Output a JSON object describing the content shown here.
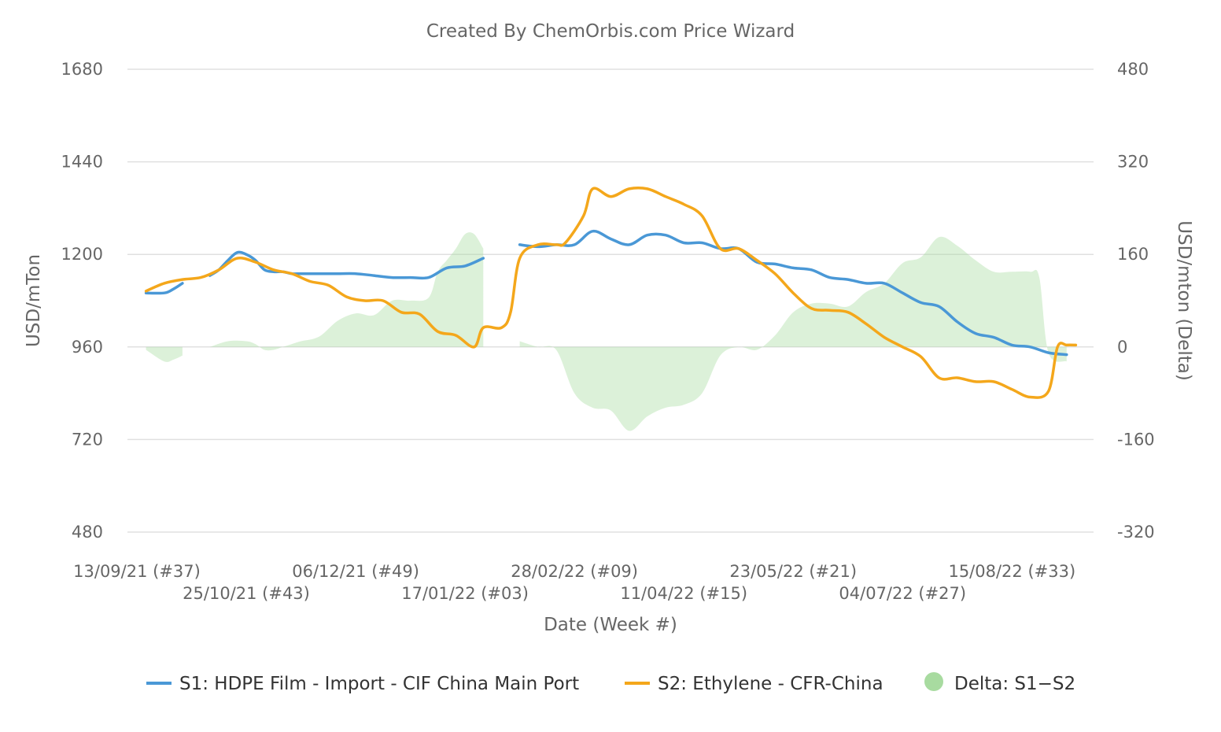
{
  "chart_data": {
    "type": "line",
    "title": "Created By ChemOrbis.com Price Wizard",
    "xlabel": "Date (Week #)",
    "ylabel_left": "USD/mTon",
    "ylabel_right": "USD/mton (Delta)",
    "ylim_left": [
      480,
      1680
    ],
    "ylim_right": [
      -320,
      480
    ],
    "yticks_left": [
      480,
      720,
      960,
      1200,
      1440,
      1680
    ],
    "yticks_right": [
      -320,
      -160,
      0,
      160,
      320,
      480
    ],
    "grid": true,
    "legend_position": "bottom",
    "x_labels": [
      {
        "label": "13/09/21 (#37)",
        "week": 0
      },
      {
        "label": "25/10/21 (#43)",
        "week": 6
      },
      {
        "label": "06/12/21 (#49)",
        "week": 12
      },
      {
        "label": "17/01/22 (#03)",
        "week": 18
      },
      {
        "label": "28/02/22 (#09)",
        "week": 24
      },
      {
        "label": "11/04/22 (#15)",
        "week": 30
      },
      {
        "label": "23/05/22 (#21)",
        "week": 36
      },
      {
        "label": "04/07/22 (#27)",
        "week": 42
      },
      {
        "label": "15/08/22 (#33)",
        "week": 48
      }
    ],
    "x_range": [
      0,
      52
    ],
    "series": [
      {
        "name": "S1: HDPE Film - Import - CIF China Main Port",
        "color": "#4a98d6",
        "axis": "left",
        "points": [
          [
            0.5,
            1100
          ],
          [
            1.5,
            1100
          ],
          [
            2,
            1110
          ],
          [
            2.5,
            1125
          ],
          [
            4,
            1145
          ],
          [
            4.5,
            1160
          ],
          [
            5,
            1185
          ],
          [
            5.5,
            1205
          ],
          [
            6,
            1200
          ],
          [
            6.5,
            1185
          ],
          [
            7,
            1160
          ],
          [
            7.5,
            1155
          ],
          [
            8,
            1155
          ],
          [
            8.5,
            1150
          ],
          [
            9,
            1150
          ],
          [
            10,
            1150
          ],
          [
            11,
            1150
          ],
          [
            12,
            1150
          ],
          [
            13,
            1145
          ],
          [
            14,
            1140
          ],
          [
            15,
            1140
          ],
          [
            16,
            1140
          ],
          [
            17,
            1165
          ],
          [
            18,
            1170
          ],
          [
            19,
            1190
          ],
          [
            21,
            1225
          ],
          [
            22,
            1220
          ],
          [
            23,
            1225
          ],
          [
            24,
            1225
          ],
          [
            25,
            1260
          ],
          [
            26,
            1240
          ],
          [
            27,
            1225
          ],
          [
            28,
            1250
          ],
          [
            29,
            1250
          ],
          [
            30,
            1230
          ],
          [
            31,
            1230
          ],
          [
            32,
            1215
          ],
          [
            33,
            1215
          ],
          [
            34,
            1180
          ],
          [
            35,
            1175
          ],
          [
            36,
            1165
          ],
          [
            37,
            1160
          ],
          [
            38,
            1140
          ],
          [
            39,
            1135
          ],
          [
            40,
            1125
          ],
          [
            41,
            1125
          ],
          [
            42,
            1100
          ],
          [
            43,
            1075
          ],
          [
            44,
            1065
          ],
          [
            45,
            1025
          ],
          [
            46,
            995
          ],
          [
            47,
            985
          ],
          [
            48,
            965
          ],
          [
            49,
            960
          ],
          [
            50,
            945
          ],
          [
            51,
            940
          ]
        ]
      },
      {
        "name": "S2: Ethylene - CFR-China",
        "color": "#f4a71b",
        "axis": "left",
        "points": [
          [
            0.5,
            1105
          ],
          [
            1.5,
            1125
          ],
          [
            2.5,
            1135
          ],
          [
            3.5,
            1140
          ],
          [
            4.5,
            1160
          ],
          [
            5.5,
            1190
          ],
          [
            6.5,
            1180
          ],
          [
            7.5,
            1160
          ],
          [
            8.5,
            1150
          ],
          [
            9.5,
            1130
          ],
          [
            10.5,
            1120
          ],
          [
            11.5,
            1090
          ],
          [
            12.5,
            1080
          ],
          [
            13.5,
            1080
          ],
          [
            14.5,
            1050
          ],
          [
            15.5,
            1045
          ],
          [
            16.5,
            1000
          ],
          [
            17.5,
            990
          ],
          [
            18.5,
            960
          ],
          [
            19,
            1010
          ],
          [
            20,
            1010
          ],
          [
            20.5,
            1050
          ],
          [
            21,
            1190
          ],
          [
            22,
            1225
          ],
          [
            23,
            1225
          ],
          [
            23.5,
            1230
          ],
          [
            24.5,
            1300
          ],
          [
            25,
            1370
          ],
          [
            26,
            1350
          ],
          [
            27,
            1370
          ],
          [
            28,
            1370
          ],
          [
            29,
            1350
          ],
          [
            30,
            1330
          ],
          [
            31,
            1300
          ],
          [
            32,
            1215
          ],
          [
            33,
            1215
          ],
          [
            34,
            1185
          ],
          [
            35,
            1150
          ],
          [
            36,
            1100
          ],
          [
            37,
            1060
          ],
          [
            38,
            1055
          ],
          [
            39,
            1050
          ],
          [
            40,
            1020
          ],
          [
            41,
            985
          ],
          [
            42,
            960
          ],
          [
            43,
            935
          ],
          [
            44,
            880
          ],
          [
            45,
            880
          ],
          [
            46,
            870
          ],
          [
            47,
            870
          ],
          [
            48,
            850
          ],
          [
            49,
            830
          ],
          [
            50,
            845
          ],
          [
            50.5,
            960
          ],
          [
            51,
            965
          ],
          [
            51.5,
            965
          ]
        ]
      },
      {
        "name": "Delta: S1−S2",
        "color": "#a8dba0",
        "axis": "right",
        "type": "area",
        "segments": [
          [
            [
              0.5,
              -5
            ],
            [
              1.5,
              -25
            ],
            [
              2,
              -22
            ],
            [
              2.5,
              -15
            ]
          ],
          [
            [
              4,
              0
            ],
            [
              5,
              10
            ],
            [
              6,
              10
            ],
            [
              6.5,
              5
            ],
            [
              7,
              -5
            ],
            [
              7.5,
              -5
            ],
            [
              8,
              0
            ],
            [
              8.5,
              5
            ],
            [
              9,
              10
            ],
            [
              10,
              18
            ],
            [
              11,
              45
            ],
            [
              12,
              58
            ],
            [
              13,
              55
            ],
            [
              14,
              80
            ],
            [
              15,
              80
            ],
            [
              16,
              85
            ],
            [
              16.5,
              130
            ],
            [
              17,
              150
            ],
            [
              17.5,
              170
            ],
            [
              18,
              195
            ],
            [
              18.5,
              195
            ],
            [
              19,
              170
            ]
          ],
          [
            [
              21,
              10
            ],
            [
              22,
              0
            ],
            [
              23,
              -5
            ],
            [
              24,
              -80
            ],
            [
              25,
              -105
            ],
            [
              26,
              -110
            ],
            [
              27,
              -145
            ],
            [
              28,
              -120
            ],
            [
              29,
              -105
            ],
            [
              30,
              -100
            ],
            [
              31,
              -80
            ],
            [
              32,
              -15
            ],
            [
              33,
              0
            ],
            [
              34,
              -5
            ],
            [
              35,
              20
            ],
            [
              36,
              60
            ],
            [
              37,
              75
            ],
            [
              38,
              75
            ],
            [
              39,
              70
            ],
            [
              40,
              95
            ],
            [
              41,
              110
            ],
            [
              42,
              145
            ],
            [
              43,
              155
            ],
            [
              44,
              190
            ],
            [
              45,
              175
            ],
            [
              46,
              150
            ],
            [
              47,
              130
            ],
            [
              48,
              130
            ],
            [
              49,
              130
            ],
            [
              49.5,
              120
            ],
            [
              50,
              -10
            ],
            [
              51,
              -25
            ]
          ]
        ]
      }
    ]
  }
}
